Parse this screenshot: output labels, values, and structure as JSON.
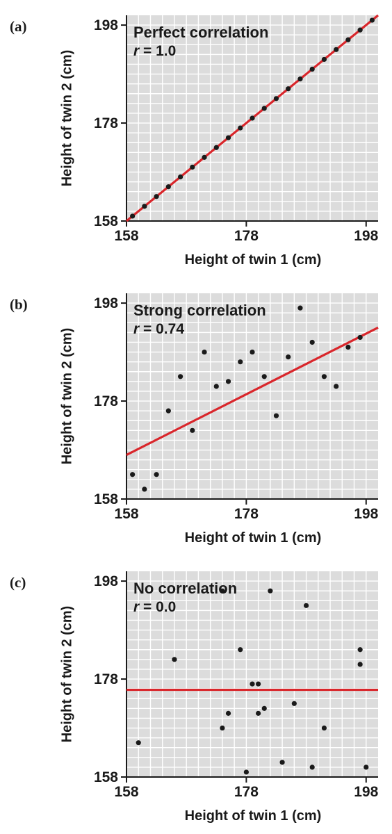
{
  "chart_data": [
    {
      "type": "scatter",
      "panel_label": "(a)",
      "title": "Perfect correlation",
      "r_label": "r",
      "r_value": "= 1.0",
      "xlabel": "Height of twin 1 (cm)",
      "ylabel": "Height of twin 2 (cm)",
      "xlim": [
        158,
        200
      ],
      "ylim": [
        158,
        200
      ],
      "xticks": [
        158,
        178,
        198
      ],
      "yticks": [
        158,
        178,
        198
      ],
      "grid": true,
      "points": [
        [
          159,
          159
        ],
        [
          161,
          161
        ],
        [
          163,
          163
        ],
        [
          165,
          165
        ],
        [
          167,
          167
        ],
        [
          169,
          169
        ],
        [
          171,
          171
        ],
        [
          173,
          173
        ],
        [
          175,
          175
        ],
        [
          177,
          177
        ],
        [
          179,
          179
        ],
        [
          181,
          181
        ],
        [
          183,
          183
        ],
        [
          185,
          185
        ],
        [
          187,
          187
        ],
        [
          189,
          189
        ],
        [
          191,
          191
        ],
        [
          193,
          193
        ],
        [
          195,
          195
        ],
        [
          197,
          197
        ],
        [
          199,
          199
        ]
      ],
      "fit_line": [
        [
          158,
          158
        ],
        [
          200,
          200
        ]
      ],
      "colors": {
        "points": "#1a1a1a",
        "fit_line": "#d9262b",
        "plot_bg": "#dcdcdc",
        "grid": "#ffffff"
      }
    },
    {
      "type": "scatter",
      "panel_label": "(b)",
      "title": "Strong correlation",
      "r_label": "r",
      "r_value": "= 0.74",
      "xlabel": "Height of twin 1 (cm)",
      "ylabel": "Height of twin 2 (cm)",
      "xlim": [
        158,
        200
      ],
      "ylim": [
        158,
        200
      ],
      "xticks": [
        158,
        178,
        198
      ],
      "yticks": [
        158,
        178,
        198
      ],
      "grid": true,
      "points": [
        [
          159,
          163
        ],
        [
          161,
          160
        ],
        [
          163,
          163
        ],
        [
          165,
          176
        ],
        [
          167,
          183
        ],
        [
          169,
          172
        ],
        [
          171,
          188
        ],
        [
          173,
          181
        ],
        [
          175,
          182
        ],
        [
          177,
          186
        ],
        [
          179,
          188
        ],
        [
          181,
          183
        ],
        [
          183,
          175
        ],
        [
          185,
          187
        ],
        [
          187,
          197
        ],
        [
          189,
          190
        ],
        [
          191,
          183
        ],
        [
          193,
          181
        ],
        [
          195,
          189
        ],
        [
          197,
          191
        ]
      ],
      "fit_line": [
        [
          158,
          167
        ],
        [
          200,
          193
        ]
      ],
      "colors": {
        "points": "#1a1a1a",
        "fit_line": "#d9262b",
        "plot_bg": "#dcdcdc",
        "grid": "#ffffff"
      }
    },
    {
      "type": "scatter",
      "panel_label": "(c)",
      "title": "No correlation",
      "r_label": "r",
      "r_value": "= 0.0",
      "xlabel": "Height of twin 1 (cm)",
      "ylabel": "Height of twin 2 (cm)",
      "xlim": [
        158,
        200
      ],
      "ylim": [
        158,
        200
      ],
      "xticks": [
        158,
        178,
        198
      ],
      "yticks": [
        158,
        178,
        198
      ],
      "grid": true,
      "points": [
        [
          160,
          165
        ],
        [
          166,
          182
        ],
        [
          174,
          168
        ],
        [
          174,
          196
        ],
        [
          175,
          171
        ],
        [
          177,
          184
        ],
        [
          178,
          159
        ],
        [
          179,
          177
        ],
        [
          180,
          177
        ],
        [
          180,
          171
        ],
        [
          181,
          172
        ],
        [
          182,
          196
        ],
        [
          184,
          161
        ],
        [
          186,
          173
        ],
        [
          188,
          193
        ],
        [
          189,
          160
        ],
        [
          191,
          168
        ],
        [
          197,
          181
        ],
        [
          197,
          184
        ],
        [
          198,
          160
        ]
      ],
      "fit_line": [
        [
          158,
          175.8
        ],
        [
          200,
          175.8
        ]
      ],
      "colors": {
        "points": "#1a1a1a",
        "fit_line": "#d9262b",
        "plot_bg": "#dcdcdc",
        "grid": "#ffffff"
      }
    }
  ]
}
